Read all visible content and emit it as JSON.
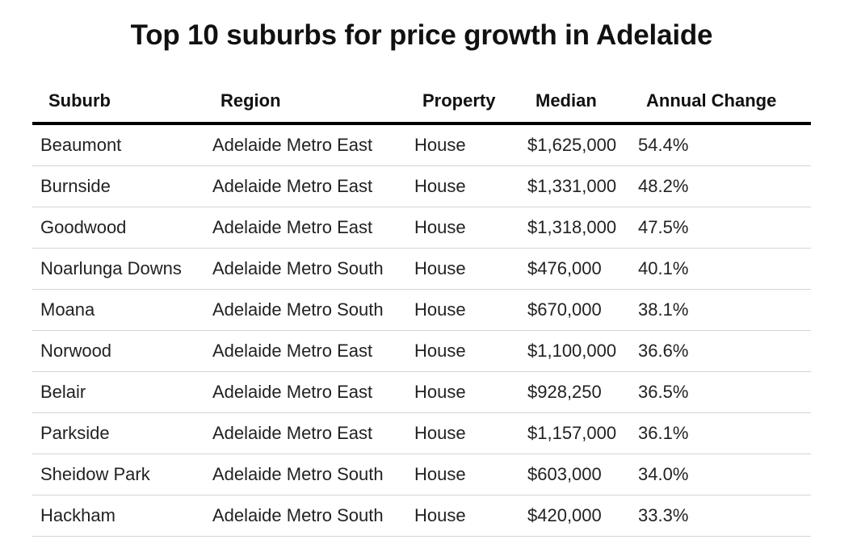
{
  "chart_data": {
    "type": "table",
    "title": "Top 10 suburbs for price growth in Adelaide",
    "columns": [
      "Suburb",
      "Region",
      "Property",
      "Median",
      "Annual Change"
    ],
    "rows": [
      [
        "Beaumont",
        "Adelaide Metro East",
        "House",
        "$1,625,000",
        "54.4%"
      ],
      [
        "Burnside",
        "Adelaide Metro East",
        "House",
        "$1,331,000",
        "48.2%"
      ],
      [
        "Goodwood",
        "Adelaide Metro East",
        "House",
        "$1,318,000",
        "47.5%"
      ],
      [
        "Noarlunga Downs",
        "Adelaide Metro South",
        "House",
        "$476,000",
        "40.1%"
      ],
      [
        "Moana",
        "Adelaide Metro South",
        "House",
        "$670,000",
        "38.1%"
      ],
      [
        "Norwood",
        "Adelaide Metro East",
        "House",
        "$1,100,000",
        "36.6%"
      ],
      [
        "Belair",
        "Adelaide Metro East",
        "House",
        "$928,250",
        "36.5%"
      ],
      [
        "Parkside",
        "Adelaide Metro East",
        "House",
        "$1,157,000",
        "36.1%"
      ],
      [
        "Sheidow Park",
        "Adelaide Metro South",
        "House",
        "$603,000",
        "34.0%"
      ],
      [
        "Hackham",
        "Adelaide Metro South",
        "House",
        "$420,000",
        "33.3%"
      ]
    ]
  }
}
